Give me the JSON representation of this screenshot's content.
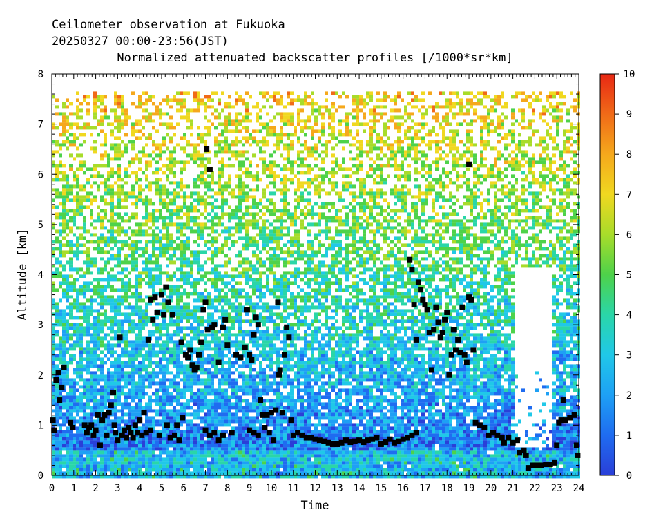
{
  "chart_data": {
    "type": "heatmap",
    "title_lines": [
      "Ceilometer observation at Fukuoka",
      "20250327  00:00-23:56(JST)"
    ],
    "subtitle": "Normalized attenuated backscatter profiles [/1000*sr*km]",
    "xlabel": "Time",
    "ylabel": "Altitude [km]",
    "xlim": [
      0,
      24
    ],
    "ylim": [
      0,
      8
    ],
    "x_ticks": [
      "0",
      "1",
      "2",
      "3",
      "4",
      "5",
      "6",
      "7",
      "8",
      "9",
      "10",
      "11",
      "12",
      "13",
      "14",
      "15",
      "16",
      "17",
      "18",
      "19",
      "20",
      "21",
      "22",
      "23",
      "24"
    ],
    "y_ticks": [
      "0",
      "1",
      "2",
      "3",
      "4",
      "5",
      "6",
      "7",
      "8"
    ],
    "data_top_altitude_km": 7.65,
    "colorbar": {
      "range": [
        0,
        10
      ],
      "ticks": [
        "0",
        "1",
        "2",
        "3",
        "4",
        "5",
        "6",
        "7",
        "8",
        "9",
        "10"
      ],
      "colors": [
        "#2a3fd8",
        "#1f6cf0",
        "#1ea0f5",
        "#20c8e8",
        "#2ad6a8",
        "#4ed24a",
        "#a8dc2a",
        "#f0d820",
        "#f5a81c",
        "#f06a18",
        "#e82814"
      ]
    },
    "cloud_base_series": {
      "name": "",
      "points": [
        [
          0.05,
          1.1
        ],
        [
          0.1,
          0.9
        ],
        [
          0.2,
          1.9
        ],
        [
          0.3,
          2.05
        ],
        [
          0.35,
          1.5
        ],
        [
          0.45,
          1.75
        ],
        [
          0.55,
          2.15
        ],
        [
          0.85,
          1.05
        ],
        [
          0.95,
          0.95
        ],
        [
          1.5,
          1.0
        ],
        [
          1.6,
          0.85
        ],
        [
          1.7,
          0.95
        ],
        [
          1.8,
          1.0
        ],
        [
          1.9,
          0.8
        ],
        [
          2.0,
          0.9
        ],
        [
          2.1,
          1.2
        ],
        [
          2.2,
          0.6
        ],
        [
          2.3,
          1.1
        ],
        [
          2.4,
          1.2
        ],
        [
          2.5,
          0.8
        ],
        [
          2.6,
          1.25
        ],
        [
          2.7,
          1.4
        ],
        [
          2.8,
          1.65
        ],
        [
          2.85,
          1.0
        ],
        [
          2.9,
          0.85
        ],
        [
          3.0,
          0.7
        ],
        [
          3.1,
          2.75
        ],
        [
          3.2,
          0.8
        ],
        [
          3.3,
          0.9
        ],
        [
          3.4,
          0.75
        ],
        [
          3.5,
          0.95
        ],
        [
          3.6,
          0.85
        ],
        [
          3.7,
          0.75
        ],
        [
          3.8,
          1.0
        ],
        [
          3.9,
          0.85
        ],
        [
          4.0,
          1.1
        ],
        [
          4.1,
          0.8
        ],
        [
          4.2,
          1.25
        ],
        [
          4.3,
          0.85
        ],
        [
          4.4,
          2.7
        ],
        [
          4.5,
          0.9
        ],
        [
          4.5,
          3.5
        ],
        [
          4.6,
          3.1
        ],
        [
          4.7,
          3.55
        ],
        [
          4.8,
          3.25
        ],
        [
          4.9,
          0.8
        ],
        [
          5.0,
          3.6
        ],
        [
          5.1,
          3.2
        ],
        [
          5.2,
          3.75
        ],
        [
          5.25,
          1.0
        ],
        [
          5.3,
          3.45
        ],
        [
          5.4,
          0.75
        ],
        [
          5.5,
          3.2
        ],
        [
          5.6,
          0.8
        ],
        [
          5.7,
          1.0
        ],
        [
          5.8,
          0.7
        ],
        [
          5.9,
          2.65
        ],
        [
          5.95,
          1.15
        ],
        [
          6.1,
          2.4
        ],
        [
          6.2,
          2.35
        ],
        [
          6.3,
          2.5
        ],
        [
          6.4,
          2.2
        ],
        [
          6.5,
          2.1
        ],
        [
          6.6,
          2.15
        ],
        [
          6.7,
          2.4
        ],
        [
          6.8,
          2.65
        ],
        [
          6.9,
          3.3
        ],
        [
          7.0,
          3.45
        ],
        [
          7.05,
          6.5
        ],
        [
          7.1,
          2.9
        ],
        [
          7.2,
          6.1
        ],
        [
          7.3,
          2.95
        ],
        [
          7.4,
          3.0
        ],
        [
          7.0,
          0.9
        ],
        [
          7.2,
          0.8
        ],
        [
          7.4,
          0.85
        ],
        [
          7.6,
          0.7
        ],
        [
          7.8,
          0.8
        ],
        [
          7.6,
          2.25
        ],
        [
          7.8,
          2.95
        ],
        [
          7.9,
          3.1
        ],
        [
          8.0,
          2.6
        ],
        [
          8.2,
          0.85
        ],
        [
          8.4,
          2.4
        ],
        [
          8.6,
          2.35
        ],
        [
          8.8,
          2.55
        ],
        [
          8.9,
          3.3
        ],
        [
          9.0,
          2.4
        ],
        [
          9.1,
          2.3
        ],
        [
          9.2,
          2.8
        ],
        [
          9.3,
          3.15
        ],
        [
          9.4,
          3.0
        ],
        [
          9.0,
          0.9
        ],
        [
          9.2,
          0.85
        ],
        [
          9.4,
          0.8
        ],
        [
          9.5,
          1.5
        ],
        [
          9.6,
          1.2
        ],
        [
          9.7,
          0.95
        ],
        [
          9.8,
          1.2
        ],
        [
          9.9,
          0.85
        ],
        [
          10.0,
          1.25
        ],
        [
          10.1,
          0.7
        ],
        [
          10.2,
          1.3
        ],
        [
          10.3,
          3.45
        ],
        [
          10.35,
          2.0
        ],
        [
          10.4,
          2.1
        ],
        [
          10.5,
          1.25
        ],
        [
          10.6,
          2.4
        ],
        [
          10.7,
          2.95
        ],
        [
          10.8,
          2.75
        ],
        [
          10.9,
          1.1
        ],
        [
          11.0,
          0.8
        ],
        [
          11.2,
          0.85
        ],
        [
          11.4,
          0.8
        ],
        [
          11.6,
          0.75
        ],
        [
          11.8,
          0.75
        ],
        [
          12.0,
          0.72
        ],
        [
          12.2,
          0.7
        ],
        [
          12.4,
          0.68
        ],
        [
          12.6,
          0.65
        ],
        [
          12.8,
          0.62
        ],
        [
          13.0,
          0.62
        ],
        [
          13.2,
          0.65
        ],
        [
          13.4,
          0.7
        ],
        [
          13.6,
          0.66
        ],
        [
          13.8,
          0.68
        ],
        [
          14.0,
          0.7
        ],
        [
          14.2,
          0.66
        ],
        [
          14.4,
          0.7
        ],
        [
          14.6,
          0.72
        ],
        [
          14.8,
          0.75
        ],
        [
          15.0,
          0.62
        ],
        [
          15.2,
          0.66
        ],
        [
          15.4,
          0.72
        ],
        [
          15.6,
          0.65
        ],
        [
          15.8,
          0.68
        ],
        [
          16.0,
          0.72
        ],
        [
          16.2,
          0.75
        ],
        [
          16.4,
          0.8
        ],
        [
          16.6,
          0.85
        ],
        [
          16.3,
          4.3
        ],
        [
          16.4,
          4.1
        ],
        [
          16.5,
          3.4
        ],
        [
          16.6,
          2.7
        ],
        [
          16.7,
          3.85
        ],
        [
          16.8,
          3.7
        ],
        [
          16.9,
          3.5
        ],
        [
          17.0,
          3.4
        ],
        [
          17.1,
          3.3
        ],
        [
          17.2,
          2.85
        ],
        [
          17.3,
          2.1
        ],
        [
          17.4,
          2.9
        ],
        [
          17.5,
          3.35
        ],
        [
          17.6,
          3.05
        ],
        [
          17.7,
          2.75
        ],
        [
          17.8,
          2.85
        ],
        [
          17.9,
          3.1
        ],
        [
          18.0,
          3.25
        ],
        [
          18.1,
          2.0
        ],
        [
          18.2,
          2.4
        ],
        [
          18.3,
          2.9
        ],
        [
          18.4,
          2.5
        ],
        [
          18.5,
          2.7
        ],
        [
          18.6,
          2.45
        ],
        [
          18.7,
          3.35
        ],
        [
          18.8,
          2.4
        ],
        [
          18.9,
          2.25
        ],
        [
          19.0,
          3.55
        ],
        [
          19.0,
          6.2
        ],
        [
          19.1,
          3.5
        ],
        [
          19.2,
          2.5
        ],
        [
          19.3,
          1.05
        ],
        [
          19.5,
          1.0
        ],
        [
          19.7,
          0.95
        ],
        [
          19.9,
          0.8
        ],
        [
          20.1,
          0.85
        ],
        [
          20.3,
          0.8
        ],
        [
          20.5,
          0.75
        ],
        [
          20.6,
          0.65
        ],
        [
          20.8,
          0.75
        ],
        [
          21.0,
          0.65
        ],
        [
          21.2,
          0.7
        ],
        [
          21.3,
          0.45
        ],
        [
          21.5,
          0.5
        ],
        [
          21.6,
          0.4
        ],
        [
          21.7,
          0.15
        ],
        [
          21.9,
          0.2
        ],
        [
          22.1,
          0.2
        ],
        [
          22.3,
          0.2
        ],
        [
          22.5,
          0.22
        ],
        [
          22.7,
          0.22
        ],
        [
          22.9,
          0.25
        ],
        [
          23.0,
          0.6
        ],
        [
          23.1,
          1.05
        ],
        [
          23.2,
          1.1
        ],
        [
          23.3,
          1.5
        ],
        [
          23.4,
          1.1
        ],
        [
          23.6,
          1.15
        ],
        [
          23.8,
          1.2
        ],
        [
          23.9,
          0.6
        ],
        [
          23.95,
          0.4
        ]
      ]
    }
  }
}
